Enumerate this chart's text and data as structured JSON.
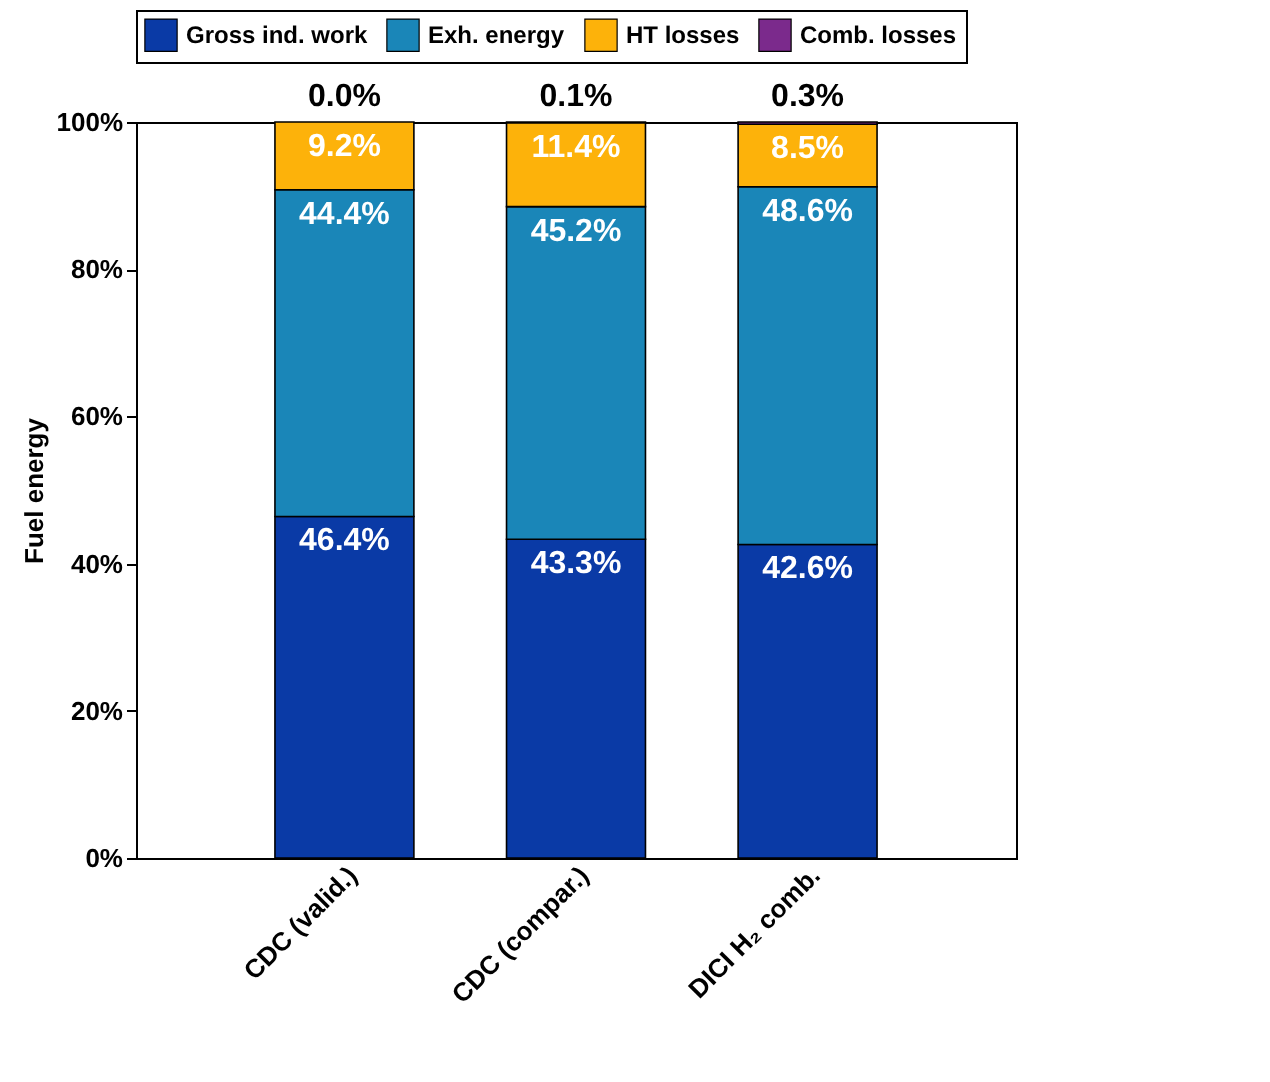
{
  "chart_data": {
    "type": "bar",
    "stacked": true,
    "ylabel": "Fuel energy",
    "categories": [
      "CDC (valid.)",
      "CDC (compar.)",
      "DICI H₂ comb."
    ],
    "series": [
      {
        "name": "Gross ind. work",
        "color": "#0a3aa6",
        "values": [
          46.4,
          43.3,
          42.6
        ],
        "value_labels": [
          "46.4%",
          "43.3%",
          "42.6%"
        ]
      },
      {
        "name": "Exh. energy",
        "color": "#1a86b8",
        "values": [
          44.4,
          45.2,
          48.6
        ],
        "value_labels": [
          "44.4%",
          "45.2%",
          "48.6%"
        ]
      },
      {
        "name": "HT losses",
        "color": "#fdb20a",
        "values": [
          9.2,
          11.4,
          8.5
        ],
        "value_labels": [
          "9.2%",
          "11.4%",
          "8.5%"
        ]
      },
      {
        "name": "Comb. losses",
        "color": "#7b2a8c",
        "values": [
          0.0,
          0.1,
          0.3
        ],
        "value_labels": [
          "0.0%",
          "0.1%",
          "0.3%"
        ]
      }
    ],
    "ylim": [
      0,
      100
    ],
    "yticks": [
      {
        "value": 0,
        "label": "0%"
      },
      {
        "value": 20,
        "label": "20%"
      },
      {
        "value": 40,
        "label": "40%"
      },
      {
        "value": 60,
        "label": "60%"
      },
      {
        "value": 80,
        "label": "80%"
      },
      {
        "value": 100,
        "label": "100%"
      }
    ],
    "grid": false,
    "legend": "top"
  }
}
